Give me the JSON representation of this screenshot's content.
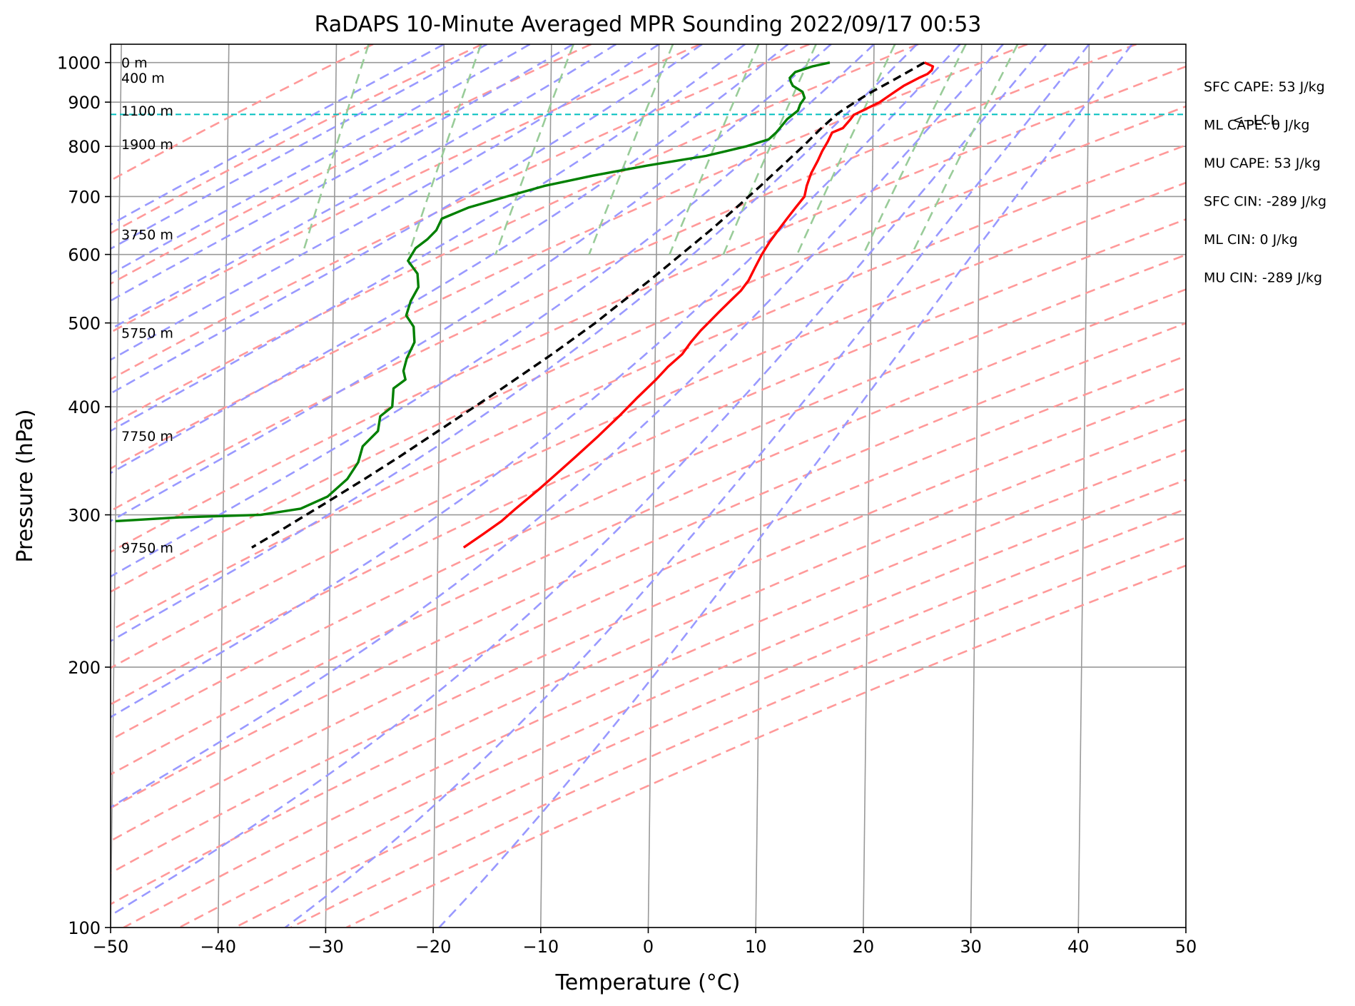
{
  "chart_data": {
    "type": "line",
    "title": "RaDAPS 10-Minute Averaged MPR Sounding 2022/09/17 00:53",
    "xlabel": "Temperature (°C)",
    "ylabel": "Pressure (hPa)",
    "xlim": [
      -50,
      50
    ],
    "ylim": [
      1050,
      100
    ],
    "y_scale": "log",
    "skew": "skew-T",
    "grid": true,
    "x_ticks": [
      "−50",
      "−40",
      "−30",
      "−20",
      "−10",
      "0",
      "10",
      "20",
      "30",
      "40",
      "50"
    ],
    "x_tick_values": [
      -50,
      -40,
      -30,
      -20,
      -10,
      0,
      10,
      20,
      30,
      40,
      50
    ],
    "y_ticks": [
      "100",
      "200",
      "300",
      "400",
      "500",
      "600",
      "700",
      "800",
      "900",
      "1000"
    ],
    "y_tick_values": [
      100,
      200,
      300,
      400,
      500,
      600,
      700,
      800,
      900,
      1000
    ],
    "colors": {
      "temperature": "#ff0000",
      "dewpoint": "#008000",
      "parcel": "#000000",
      "lcl": "#00bfbf",
      "dry_adiabat": "#ff9999",
      "moist_adiabat": "#9999ff",
      "mixing_ratio": "#99cc99",
      "isotherm": "#999999"
    },
    "series": [
      {
        "key": "temperature",
        "points": [
          [
            1000,
            24.7
          ],
          [
            990,
            25.5
          ],
          [
            980,
            25.4
          ],
          [
            970,
            25.0
          ],
          [
            960,
            24.2
          ],
          [
            940,
            22.8
          ],
          [
            920,
            21.7
          ],
          [
            900,
            20.6
          ],
          [
            880,
            19.0
          ],
          [
            870,
            18.2
          ],
          [
            860,
            17.9
          ],
          [
            840,
            17.2
          ],
          [
            830,
            16.2
          ],
          [
            810,
            15.8
          ],
          [
            790,
            15.3
          ],
          [
            770,
            14.9
          ],
          [
            745,
            14.3
          ],
          [
            720,
            13.9
          ],
          [
            700,
            13.7
          ],
          [
            680,
            12.9
          ],
          [
            660,
            12.1
          ],
          [
            640,
            11.3
          ],
          [
            620,
            10.5
          ],
          [
            600,
            9.8
          ],
          [
            580,
            9.2
          ],
          [
            560,
            8.6
          ],
          [
            545,
            7.9
          ],
          [
            530,
            6.9
          ],
          [
            515,
            5.9
          ],
          [
            500,
            4.9
          ],
          [
            490,
            4.2
          ],
          [
            475,
            3.3
          ],
          [
            460,
            2.5
          ],
          [
            445,
            1.2
          ],
          [
            430,
            0.1
          ],
          [
            410,
            -1.6
          ],
          [
            390,
            -3.3
          ],
          [
            370,
            -5.2
          ],
          [
            350,
            -7.3
          ],
          [
            335,
            -9.0
          ],
          [
            320,
            -10.8
          ],
          [
            305,
            -12.8
          ],
          [
            295,
            -14.1
          ],
          [
            285,
            -15.8
          ],
          [
            275,
            -17.6
          ]
        ]
      },
      {
        "key": "dewpoint",
        "points": [
          [
            1000,
            15.9
          ],
          [
            990,
            14.3
          ],
          [
            975,
            12.7
          ],
          [
            960,
            12.2
          ],
          [
            950,
            12.3
          ],
          [
            940,
            12.5
          ],
          [
            925,
            13.4
          ],
          [
            910,
            13.6
          ],
          [
            895,
            13.2
          ],
          [
            880,
            13.0
          ],
          [
            860,
            12.0
          ],
          [
            845,
            11.5
          ],
          [
            830,
            11.0
          ],
          [
            815,
            10.3
          ],
          [
            800,
            8.2
          ],
          [
            780,
            4.5
          ],
          [
            760,
            -1.0
          ],
          [
            740,
            -6.0
          ],
          [
            720,
            -10.5
          ],
          [
            700,
            -14.0
          ],
          [
            680,
            -17.5
          ],
          [
            660,
            -20.0
          ],
          [
            640,
            -20.5
          ],
          [
            625,
            -21.3
          ],
          [
            610,
            -22.4
          ],
          [
            590,
            -23.1
          ],
          [
            570,
            -22.2
          ],
          [
            550,
            -22.1
          ],
          [
            530,
            -22.8
          ],
          [
            510,
            -23.2
          ],
          [
            495,
            -22.5
          ],
          [
            475,
            -22.4
          ],
          [
            455,
            -23.1
          ],
          [
            440,
            -23.4
          ],
          [
            430,
            -23.2
          ],
          [
            420,
            -24.3
          ],
          [
            400,
            -24.4
          ],
          [
            390,
            -25.5
          ],
          [
            375,
            -25.7
          ],
          [
            360,
            -27.1
          ],
          [
            345,
            -27.5
          ],
          [
            330,
            -28.5
          ],
          [
            315,
            -30.3
          ],
          [
            305,
            -32.8
          ],
          [
            300,
            -36.5
          ],
          [
            298,
            -44.0
          ],
          [
            295,
            -50.0
          ]
        ]
      },
      {
        "key": "parcel",
        "points": [
          [
            1000,
            24.7
          ],
          [
            960,
            22.2
          ],
          [
            920,
            19.5
          ],
          [
            900,
            18.3
          ],
          [
            880,
            17.1
          ],
          [
            871,
            16.6
          ],
          [
            840,
            15.2
          ],
          [
            800,
            13.5
          ],
          [
            760,
            11.6
          ],
          [
            720,
            9.6
          ],
          [
            680,
            7.4
          ],
          [
            640,
            5.0
          ],
          [
            600,
            2.3
          ],
          [
            560,
            -0.6
          ],
          [
            520,
            -3.9
          ],
          [
            500,
            -5.6
          ],
          [
            460,
            -9.6
          ],
          [
            420,
            -14.2
          ],
          [
            380,
            -19.4
          ],
          [
            350,
            -23.7
          ],
          [
            330,
            -26.9
          ],
          [
            310,
            -30.4
          ],
          [
            290,
            -34.2
          ],
          [
            275,
            -37.3
          ]
        ]
      }
    ],
    "lcl_pressure": 871,
    "lcl_label": "<--LCL",
    "height_labels": [
      {
        "text": "9750 m",
        "pressure": 275
      },
      {
        "text": "7750 m",
        "pressure": 370
      },
      {
        "text": "5750 m",
        "pressure": 487
      },
      {
        "text": "3750 m",
        "pressure": 633
      },
      {
        "text": "1900 m",
        "pressure": 805
      },
      {
        "text": "1100 m",
        "pressure": 880
      },
      {
        "text": "400 m",
        "pressure": 960
      },
      {
        "text": "0 m",
        "pressure": 1000
      }
    ],
    "annotations": [
      "SFC CAPE: 53 J/kg",
      "ML CAPE: 0 J/kg",
      "MU CAPE: 53 J/kg",
      "SFC CIN: -289 J/kg",
      "ML CIN: 0 J/kg",
      "MU CIN: -289 J/kg"
    ]
  }
}
